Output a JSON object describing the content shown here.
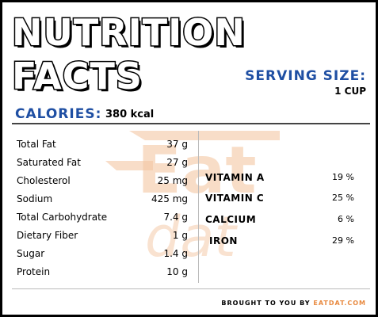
{
  "header": {
    "title_line1": "NUTRITION",
    "title_line2": "FACTS"
  },
  "serving": {
    "label": "SERVING SIZE:",
    "value": "1 CUP"
  },
  "calories": {
    "label": "CALORIES:",
    "value": "380 kcal"
  },
  "nutrients": [
    {
      "label": "Total Fat",
      "value": "37 g"
    },
    {
      "label": "Saturated Fat",
      "value": "27 g"
    },
    {
      "label": "Cholesterol",
      "value": "25 mg"
    },
    {
      "label": "Sodium",
      "value": "425 mg"
    },
    {
      "label": "Total Carbohydrate",
      "value": "7.4 g"
    },
    {
      "label": "Dietary Fiber",
      "value": "1 g"
    },
    {
      "label": "Sugar",
      "value": "1.4 g"
    },
    {
      "label": "Protein",
      "value": "10 g"
    }
  ],
  "vitamins": [
    {
      "label": "VITAMIN A",
      "value": "19 %"
    },
    {
      "label": "VITAMIN C",
      "value": "25 %"
    },
    {
      "label": "CALCIUM",
      "value": "6 %"
    },
    {
      "label": "IRON",
      "value": "29 %"
    }
  ],
  "footer": {
    "prefix": "BROUGHT TO YOU BY",
    "brand": "EATDAT.COM"
  },
  "watermark": {
    "text_top": "Eat",
    "text_bottom": "dat",
    "color": "#f4c7a3"
  },
  "colors": {
    "accent_blue": "#1f4fa3",
    "brand_orange": "#e8893f"
  }
}
